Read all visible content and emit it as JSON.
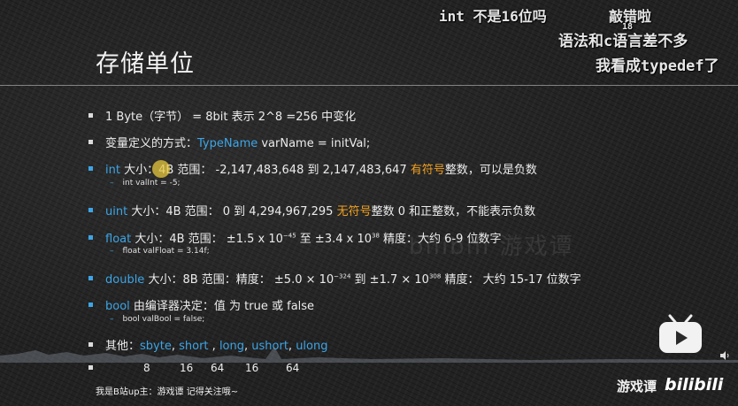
{
  "slide": {
    "title": "存储单位",
    "rows": [
      {
        "pre": "1 Byte（字节） =  8bit   表示 2^8 =256 中变化"
      },
      {
        "pre": "变量定义的方式：",
        "kw": "TypeName",
        "post": "  varName = initVal;"
      },
      {
        "kw": "int",
        "pre2": "  大小：4B 范围：  -2,147,483,648 到 2,147,483,647  ",
        "warn": "有符号",
        "post": "整数，可以是负数"
      },
      {
        "kw": "uint",
        "pre2": " 大小：4B 范围：  0 到 4,294,967,295       ",
        "warn": "无符号",
        "post": "整数   0 和正整数，不能表示负数"
      },
      {
        "kw": "float",
        "a": "  大小：4B 范围：  ±1.5 x 10",
        "e1": "−45",
        "b": " 至 ±3.4 x 10",
        "e2": "38",
        "c": "     精度：大约 6-9 位数字"
      },
      {
        "kw": "double",
        "a": " 大小：8B 范围：精度：  ±5.0 × 10",
        "e1": "−324",
        "b": " 到 ±1.7 × 10",
        "e2": "308",
        "c": " 精度：  大约 15-17 位数字"
      },
      {
        "kw": "bool",
        "post": " 由编译器决定：值 为 true 或 false"
      },
      {
        "pre": "其他：",
        "items": [
          "sbyte",
          "short",
          "long",
          "ushort",
          "ulong"
        ]
      }
    ],
    "subs": {
      "int": "int valInt = -5;",
      "float": "float valFloat = 3.14f;",
      "bool": "bool valBool = false;"
    },
    "sizes": [
      "8",
      "16",
      "64",
      "16",
      "64"
    ],
    "footer": "我是B站up主：游戏谭    记得关注哦~",
    "watermark": "bilibili  游戏谭"
  },
  "danmaku": [
    {
      "text": "int 不是16位吗"
    },
    {
      "text": "敲错啦"
    },
    {
      "text": "语法和c语言差不多"
    },
    {
      "text": "我看成typedef了"
    },
    {
      "text": "18"
    }
  ],
  "branding": {
    "channel": "游戏谭",
    "logo": "bilibili"
  },
  "colors": {
    "keyword": "#3da5e6",
    "highlight": "#f0a020"
  }
}
